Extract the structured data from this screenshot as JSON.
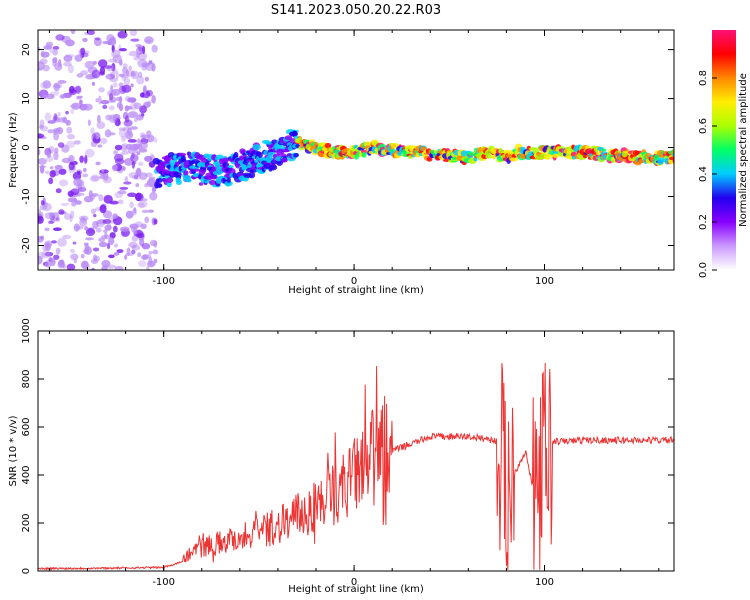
{
  "title": "S141.2023.050.20.22.R03",
  "chart_data": [
    {
      "type": "heatmap",
      "xlabel": "Height of straight line (km)",
      "ylabel": "Frequency (Hz)",
      "xlim": [
        -166,
        168
      ],
      "ylim": [
        -25,
        24
      ],
      "xticks": [
        -100,
        0,
        100
      ],
      "yticks": [
        -20,
        -10,
        0,
        10,
        20
      ],
      "grid": false,
      "ridge": {
        "x": [
          -104,
          -90,
          -70,
          -55,
          -42,
          -30,
          -20,
          -10,
          0,
          10,
          30,
          60,
          70,
          80,
          85,
          95,
          120,
          150,
          168
        ],
        "hz": [
          -5,
          -4,
          -5,
          -3,
          -1,
          1,
          0,
          -1,
          -1,
          0,
          -1,
          -2,
          -1,
          -2,
          -1,
          -1,
          -1,
          -2,
          -2
        ]
      },
      "colorbar": {
        "label": "Normalized spectral amplitude",
        "range": [
          0,
          1
        ],
        "ticks": [
          "0.0",
          "0.2",
          "0.4",
          "0.6",
          "0.8"
        ],
        "colormap": [
          "#ffffff",
          "#cc99ff",
          "#8800ff",
          "#2200ee",
          "#00ccff",
          "#00ff66",
          "#aaff00",
          "#ffee00",
          "#ff8800",
          "#ff0000",
          "#ff1177"
        ]
      }
    },
    {
      "type": "line",
      "xlabel": "Height of straight line (km)",
      "ylabel": "SNR (10 * v/v)",
      "xlim": [
        -166,
        168
      ],
      "ylim": [
        0,
        1000
      ],
      "xticks": [
        -100,
        0,
        100
      ],
      "yticks": [
        0,
        200,
        400,
        600,
        800,
        1000
      ],
      "grid": false,
      "series": [
        {
          "color": "#ee3333",
          "x": [
            -166,
            -130,
            -100,
            -90,
            -85,
            -70,
            -60,
            -50,
            -40,
            -30,
            -20,
            -10,
            0,
            10,
            20,
            30,
            40,
            50,
            60,
            70,
            75,
            80,
            85,
            90,
            95,
            100,
            105,
            110,
            120,
            140,
            168
          ],
          "y": [
            10,
            12,
            15,
            40,
            80,
            110,
            130,
            150,
            170,
            210,
            250,
            300,
            360,
            440,
            500,
            530,
            560,
            560,
            560,
            550,
            540,
            350,
            420,
            500,
            300,
            450,
            540,
            540,
            545,
            545,
            545
          ]
        }
      ]
    }
  ]
}
